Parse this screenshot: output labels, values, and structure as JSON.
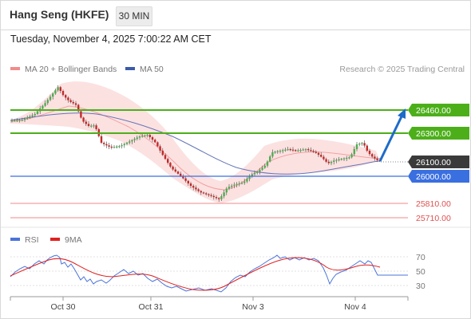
{
  "header": {
    "title": "Hang Seng (HKFE)",
    "timeframe": "30 MIN"
  },
  "timestamp": "Tuesday, November 4, 2025 7:00:22 AM CET",
  "legend": {
    "items": [
      {
        "label": "MA 20 + Bollinger Bands",
        "color": "#f28b8b"
      },
      {
        "label": "MA 50",
        "color": "#3b5ba8"
      }
    ],
    "credit": "Research © 2025 Trading Central"
  },
  "levels": [
    {
      "label": "26460.00",
      "kind": "resistance"
    },
    {
      "label": "26300.00",
      "kind": "resistance"
    },
    {
      "label": "26100.00",
      "kind": "last"
    },
    {
      "label": "26000.00",
      "kind": "pivot"
    },
    {
      "label": "25810.00",
      "kind": "support"
    },
    {
      "label": "25710.00",
      "kind": "support"
    }
  ],
  "rsi": {
    "legend": [
      {
        "label": "RSI",
        "color": "#4b73d9"
      },
      {
        "label": "9MA",
        "color": "#e02020"
      }
    ],
    "ticks": [
      "70",
      "50",
      "30"
    ]
  },
  "x_axis": {
    "labels": [
      "Oct 30",
      "Oct 31",
      "Nov 3",
      "Nov 4"
    ]
  },
  "colors": {
    "bull": "#4caf50",
    "bear": "#c62828",
    "resistance": "#4caf1a",
    "pivot": "#3a6fe0",
    "support": "#f08a8a",
    "arrow": "#1e6bc9"
  }
}
